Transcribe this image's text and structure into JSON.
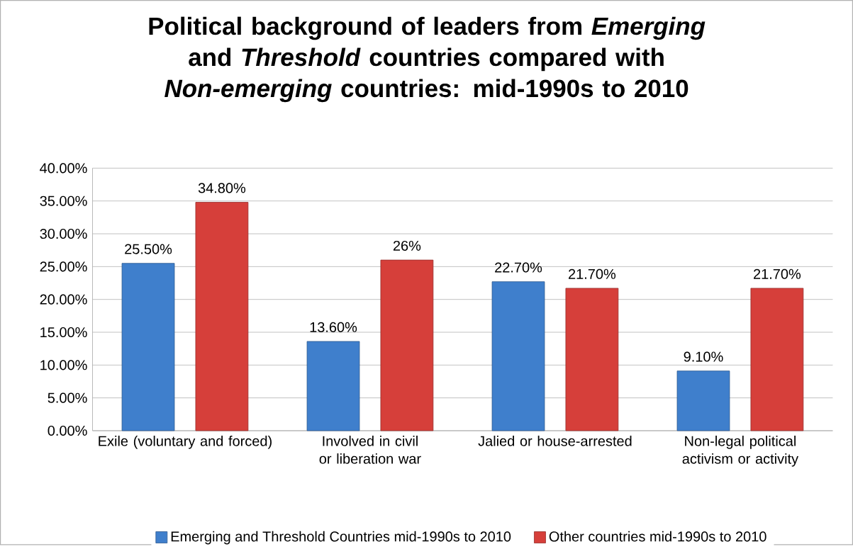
{
  "chart_data": {
    "type": "bar",
    "title": "Political background of leaders from *Emerging* and *Threshold* countries compared with *Non-emerging* countries: mid-1990s to 2010",
    "categories": [
      "Exile (voluntary and forced)",
      "Involved in civil or liberation war",
      "Jalied or house-arrested",
      "Non-legal political activism or activity"
    ],
    "series": [
      {
        "name": "Emerging and Threshold Countries mid-1990s to 2010",
        "color": "#3f7fcc",
        "values": [
          25.5,
          13.6,
          22.7,
          9.1
        ],
        "value_labels": [
          "25.50%",
          "13.60%",
          "22.70%",
          "9.10%"
        ]
      },
      {
        "name": "Other countries mid-1990s to 2010",
        "color": "#d63f3a",
        "values": [
          34.8,
          26,
          21.7,
          21.7
        ],
        "value_labels": [
          "34.80%",
          "26%",
          "21.70%",
          "21.70%"
        ]
      }
    ],
    "ylim": [
      0,
      40
    ],
    "yticks": [
      {
        "value": 0,
        "label": "0.00%"
      },
      {
        "value": 5,
        "label": "5.00%"
      },
      {
        "value": 10,
        "label": "10.00%"
      },
      {
        "value": 15,
        "label": "15.00%"
      },
      {
        "value": 20,
        "label": "20.00%"
      },
      {
        "value": 25,
        "label": "25.00%"
      },
      {
        "value": 30,
        "label": "30.00%"
      },
      {
        "value": 35,
        "label": "35.00%"
      },
      {
        "value": 40,
        "label": "40.00%"
      }
    ],
    "grid": "y",
    "legend": "bottom"
  }
}
